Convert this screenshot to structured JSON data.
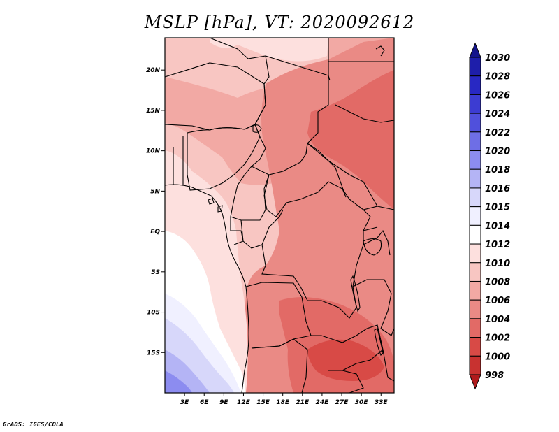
{
  "title": "MSLP [hPa], VT: 2020092612",
  "credit": "GrADS: IGES/COLA",
  "map": {
    "lon_range": [
      0,
      35
    ],
    "lat_range": [
      -20,
      24
    ],
    "lon_ticks": [
      {
        "value": 3,
        "label": "3E"
      },
      {
        "value": 6,
        "label": "6E"
      },
      {
        "value": 9,
        "label": "9E"
      },
      {
        "value": 12,
        "label": "12E"
      },
      {
        "value": 15,
        "label": "15E"
      },
      {
        "value": 18,
        "label": "18E"
      },
      {
        "value": 21,
        "label": "21E"
      },
      {
        "value": 24,
        "label": "24E"
      },
      {
        "value": 27,
        "label": "27E"
      },
      {
        "value": 30,
        "label": "30E"
      },
      {
        "value": 33,
        "label": "33E"
      }
    ],
    "lat_ticks": [
      {
        "value": 20,
        "label": "20N"
      },
      {
        "value": 15,
        "label": "15N"
      },
      {
        "value": 10,
        "label": "10N"
      },
      {
        "value": 5,
        "label": "5N"
      },
      {
        "value": 0,
        "label": "EQ"
      },
      {
        "value": -5,
        "label": "5S"
      },
      {
        "value": -10,
        "label": "10S"
      },
      {
        "value": -15,
        "label": "15S"
      }
    ]
  },
  "colorbar": {
    "levels": [
      "1030",
      "1028",
      "1026",
      "1024",
      "1022",
      "1020",
      "1018",
      "1016",
      "1015",
      "1014",
      "1012",
      "1010",
      "1008",
      "1006",
      "1004",
      "1002",
      "1000",
      "998"
    ],
    "colors": [
      "#14148c",
      "#1e1eaa",
      "#2828c3",
      "#3c3cd2",
      "#5050dc",
      "#6e6ee6",
      "#8c8cf0",
      "#b4b4f5",
      "#d7d7fa",
      "#f0f0ff",
      "#ffffff",
      "#fde0de",
      "#f8c6c2",
      "#f2a9a4",
      "#ea8a85",
      "#e26a66",
      "#d84a46",
      "#c83230",
      "#b01a1c"
    ]
  },
  "field": {
    "colors": {
      "high_1016": "#8c8cf0",
      "high_1015": "#b4b4f5",
      "high_1014": "#d7d7fa",
      "high_1013": "#f0f0ff",
      "white": "#ffffff",
      "p1012": "#fde0de",
      "p1010": "#f8c6c2",
      "p1008": "#f2a9a4",
      "p1006": "#ea8a85",
      "p1004": "#e26a66",
      "p1002": "#d84a46"
    }
  }
}
